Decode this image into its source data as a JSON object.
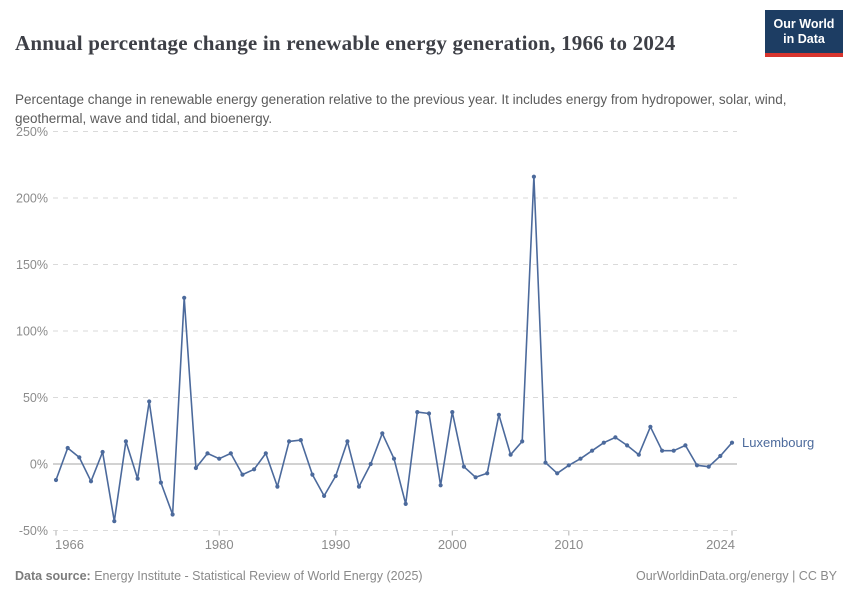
{
  "header": {
    "title": "Annual percentage change in renewable energy generation, 1966 to 2024",
    "subtitle": "Percentage change in renewable energy generation relative to the previous year. It includes energy from hydropower, solar, wind, geothermal, wave and tidal, and bioenergy.",
    "logo": {
      "line1": "Our World",
      "line2": "in Data",
      "bg_color": "#1d3d63",
      "bar_color": "#d8352e"
    }
  },
  "footer": {
    "source_label": "Data source:",
    "source_text": " Energy Institute - Statistical Review of World Energy (2025)",
    "right_text": "OurWorldinData.org/energy | CC BY"
  },
  "chart_data": {
    "type": "line",
    "title": "Annual percentage change in renewable energy generation, 1966 to 2024",
    "xlabel": "",
    "ylabel": "",
    "unit": "%",
    "xlim": [
      1966,
      2024
    ],
    "ylim": [
      -50,
      250
    ],
    "x_ticks": [
      1966,
      1980,
      1990,
      2000,
      2010,
      2024
    ],
    "y_ticks": [
      250,
      200,
      150,
      100,
      50,
      0,
      -50
    ],
    "grid": "horizontal-dashed",
    "legend_position": "end-of-line",
    "colors": {
      "series": "#4c6a9c",
      "grid": "#dadada",
      "zero_line": "#a6a6a6",
      "axis_text": "#8b8b8b",
      "tick": "#b0b0b0"
    },
    "series": [
      {
        "name": "Luxembourg",
        "x": [
          1966,
          1967,
          1968,
          1969,
          1970,
          1971,
          1972,
          1973,
          1974,
          1975,
          1976,
          1977,
          1978,
          1979,
          1980,
          1981,
          1982,
          1983,
          1984,
          1985,
          1986,
          1987,
          1988,
          1989,
          1990,
          1991,
          1992,
          1993,
          1994,
          1995,
          1996,
          1997,
          1998,
          1999,
          2000,
          2001,
          2002,
          2003,
          2004,
          2005,
          2006,
          2007,
          2008,
          2009,
          2010,
          2011,
          2012,
          2013,
          2014,
          2015,
          2016,
          2017,
          2018,
          2019,
          2020,
          2021,
          2022,
          2023,
          2024
        ],
        "values": [
          -12,
          12,
          5,
          -13,
          9,
          -43,
          17,
          -11,
          47,
          -14,
          -38,
          125,
          -3,
          8,
          4,
          8,
          -8,
          -4,
          8,
          -17,
          17,
          18,
          -8,
          -24,
          -9,
          17,
          -17,
          0,
          23,
          4,
          -30,
          39,
          38,
          -16,
          39,
          -2,
          -10,
          -7,
          37,
          7,
          17,
          216,
          1,
          -7,
          -1,
          4,
          10,
          16,
          20,
          14,
          7,
          28,
          10,
          10,
          14,
          -1,
          -2,
          6,
          16
        ]
      }
    ]
  }
}
